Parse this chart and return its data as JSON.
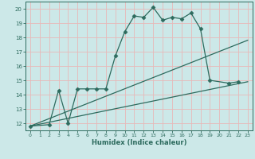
{
  "line1_x": [
    0,
    2,
    3,
    4,
    5,
    6,
    7,
    8,
    9,
    10,
    11,
    12,
    13,
    14,
    15,
    16,
    17,
    18,
    19,
    21,
    22
  ],
  "line1_y": [
    11.8,
    11.9,
    14.3,
    12.0,
    14.4,
    14.4,
    14.4,
    14.4,
    16.7,
    18.4,
    19.5,
    19.4,
    20.1,
    19.2,
    19.4,
    19.3,
    19.7,
    18.6,
    15.0,
    14.8,
    14.9
  ],
  "line2_x": [
    0,
    23
  ],
  "line2_y": [
    11.8,
    17.8
  ],
  "line3_x": [
    0,
    23
  ],
  "line3_y": [
    11.8,
    14.9
  ],
  "line_color": "#2d6b5e",
  "bg_color": "#cce8e8",
  "grid_color": "#b0d8d8",
  "xlabel": "Humidex (Indice chaleur)",
  "xlim": [
    -0.5,
    23.5
  ],
  "ylim": [
    11.5,
    20.5
  ],
  "xticks": [
    0,
    1,
    2,
    3,
    4,
    5,
    6,
    7,
    8,
    9,
    10,
    11,
    12,
    13,
    14,
    15,
    16,
    17,
    18,
    19,
    20,
    21,
    22,
    23
  ],
  "yticks": [
    12,
    13,
    14,
    15,
    16,
    17,
    18,
    19,
    20
  ]
}
